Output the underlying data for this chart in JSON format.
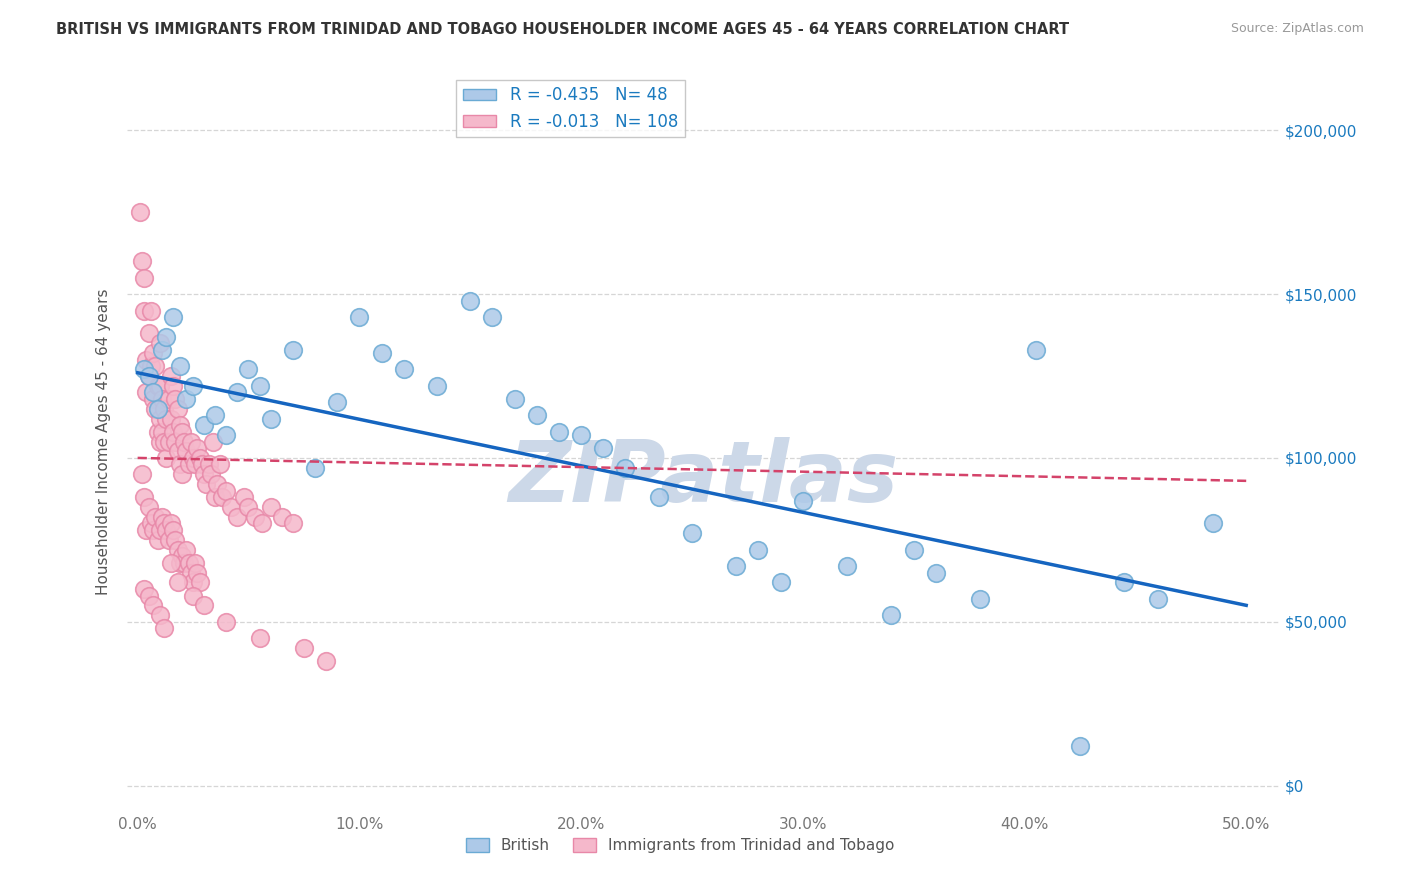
{
  "title": "BRITISH VS IMMIGRANTS FROM TRINIDAD AND TOBAGO HOUSEHOLDER INCOME AGES 45 - 64 YEARS CORRELATION CHART",
  "source": "Source: ZipAtlas.com",
  "ylabel": "Householder Income Ages 45 - 64 years",
  "british_R": -0.435,
  "british_N": 48,
  "trinidad_R": -0.013,
  "trinidad_N": 108,
  "british_color": "#adc9e8",
  "british_edge_color": "#6aaad4",
  "trinidad_color": "#f5b8cb",
  "trinidad_edge_color": "#e888a8",
  "british_line_color": "#1565c0",
  "trinidad_line_color": "#d4436a",
  "grid_color": "#cccccc",
  "background_color": "#ffffff",
  "watermark_text": "ZIPatlas",
  "watermark_color": "#ccd8e8",
  "right_axis_color": "#1a7abf",
  "title_color": "#333333",
  "source_color": "#999999",
  "tick_color": "#777777",
  "ylabel_color": "#555555",
  "brit_line_x": [
    0,
    50
  ],
  "brit_line_y": [
    126000,
    55000
  ],
  "trin_line_x": [
    0,
    50
  ],
  "trin_line_y": [
    100000,
    93000
  ],
  "xlim_min": -0.5,
  "xlim_max": 51.5,
  "ylim_min": -8000,
  "ylim_max": 218000,
  "xticks": [
    0,
    10,
    20,
    30,
    40,
    50
  ],
  "yticks": [
    0,
    50000,
    100000,
    150000,
    200000
  ],
  "british_x": [
    0.3,
    0.5,
    0.7,
    0.9,
    1.1,
    1.3,
    1.6,
    1.9,
    2.2,
    2.5,
    3.0,
    3.5,
    4.0,
    4.5,
    5.0,
    5.5,
    6.0,
    7.0,
    8.0,
    9.0,
    10.0,
    11.0,
    12.0,
    13.5,
    15.0,
    16.0,
    17.0,
    18.0,
    19.0,
    20.0,
    21.0,
    22.0,
    23.5,
    25.0,
    27.0,
    28.0,
    29.0,
    30.0,
    32.0,
    34.0,
    36.0,
    38.0,
    40.5,
    42.5,
    44.5,
    46.0,
    48.5,
    35.0
  ],
  "british_y": [
    127000,
    125000,
    120000,
    115000,
    133000,
    137000,
    143000,
    128000,
    118000,
    122000,
    110000,
    113000,
    107000,
    120000,
    127000,
    122000,
    112000,
    133000,
    97000,
    117000,
    143000,
    132000,
    127000,
    122000,
    148000,
    143000,
    118000,
    113000,
    108000,
    107000,
    103000,
    97000,
    88000,
    77000,
    67000,
    72000,
    62000,
    87000,
    67000,
    52000,
    65000,
    57000,
    133000,
    12000,
    62000,
    57000,
    80000,
    72000
  ],
  "trinidad_x": [
    0.1,
    0.2,
    0.3,
    0.3,
    0.4,
    0.4,
    0.5,
    0.5,
    0.6,
    0.6,
    0.7,
    0.7,
    0.8,
    0.8,
    0.9,
    0.9,
    1.0,
    1.0,
    1.0,
    1.0,
    1.1,
    1.1,
    1.2,
    1.2,
    1.3,
    1.3,
    1.4,
    1.4,
    1.5,
    1.5,
    1.6,
    1.6,
    1.7,
    1.7,
    1.8,
    1.8,
    1.9,
    1.9,
    2.0,
    2.0,
    2.1,
    2.2,
    2.3,
    2.4,
    2.5,
    2.6,
    2.7,
    2.8,
    2.9,
    3.0,
    3.1,
    3.2,
    3.3,
    3.4,
    3.5,
    3.6,
    3.7,
    3.8,
    4.0,
    4.2,
    4.5,
    4.8,
    5.0,
    5.3,
    5.6,
    6.0,
    6.5,
    7.0,
    0.2,
    0.3,
    0.4,
    0.5,
    0.6,
    0.7,
    0.8,
    0.9,
    1.0,
    1.1,
    1.2,
    1.3,
    1.4,
    1.5,
    1.6,
    1.7,
    1.8,
    1.9,
    2.0,
    2.1,
    2.2,
    2.3,
    2.4,
    2.5,
    2.6,
    2.7,
    2.8,
    0.3,
    0.5,
    0.7,
    1.0,
    1.2,
    1.5,
    1.8,
    2.5,
    3.0,
    4.0,
    5.5,
    7.5,
    8.5
  ],
  "trinidad_y": [
    175000,
    160000,
    155000,
    145000,
    130000,
    120000,
    138000,
    125000,
    145000,
    128000,
    132000,
    118000,
    128000,
    115000,
    122000,
    108000,
    135000,
    122000,
    112000,
    105000,
    118000,
    108000,
    115000,
    105000,
    112000,
    100000,
    118000,
    105000,
    125000,
    112000,
    122000,
    108000,
    118000,
    105000,
    115000,
    102000,
    110000,
    98000,
    108000,
    95000,
    105000,
    102000,
    98000,
    105000,
    100000,
    98000,
    103000,
    100000,
    98000,
    95000,
    92000,
    98000,
    95000,
    105000,
    88000,
    92000,
    98000,
    88000,
    90000,
    85000,
    82000,
    88000,
    85000,
    82000,
    80000,
    85000,
    82000,
    80000,
    95000,
    88000,
    78000,
    85000,
    80000,
    78000,
    82000,
    75000,
    78000,
    82000,
    80000,
    78000,
    75000,
    80000,
    78000,
    75000,
    72000,
    68000,
    70000,
    68000,
    72000,
    68000,
    65000,
    62000,
    68000,
    65000,
    62000,
    60000,
    58000,
    55000,
    52000,
    48000,
    68000,
    62000,
    58000,
    55000,
    50000,
    45000,
    42000,
    38000
  ]
}
